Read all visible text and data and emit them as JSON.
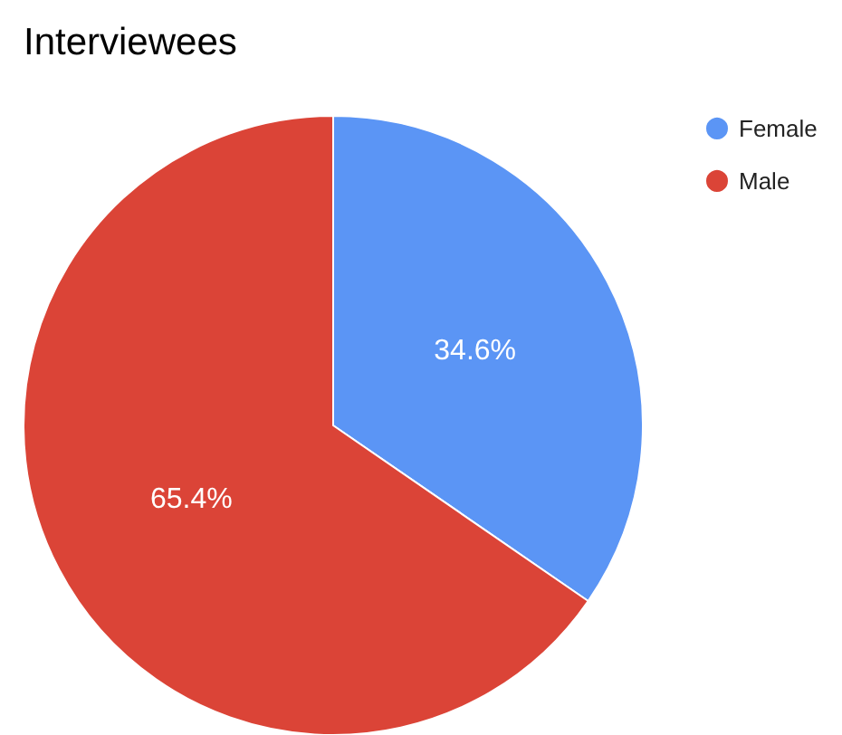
{
  "chart_data": {
    "type": "pie",
    "title": "Interviewees",
    "categories": [
      "Female",
      "Male"
    ],
    "values": [
      34.6,
      65.4
    ],
    "value_labels": [
      "34.6%",
      "65.4%"
    ],
    "colors": [
      "#5b95f5",
      "#db4437"
    ],
    "legend": "top right"
  }
}
